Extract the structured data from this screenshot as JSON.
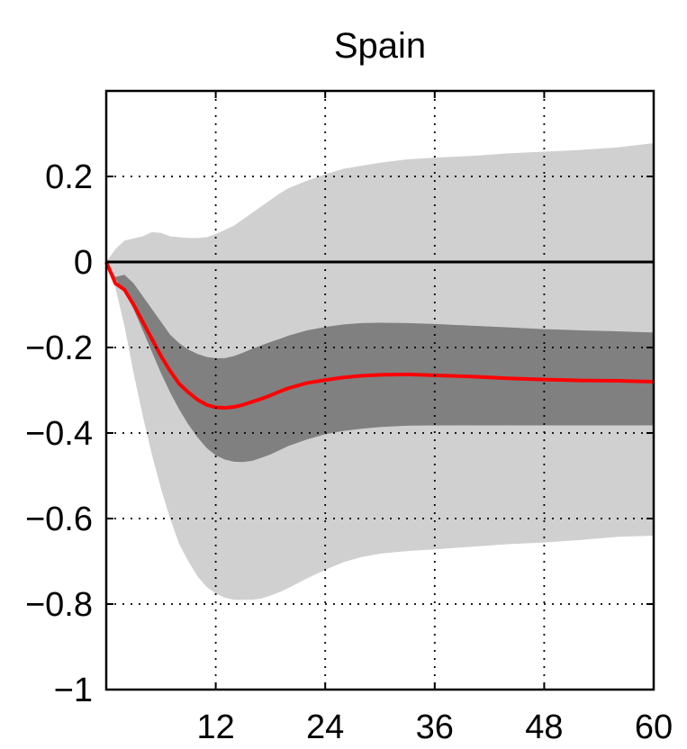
{
  "chart_data": {
    "type": "area",
    "title": "Spain",
    "xlabel": "",
    "ylabel": "",
    "xlim": [
      0,
      60
    ],
    "ylim": [
      -1,
      0.4
    ],
    "x_ticks": [
      12,
      24,
      36,
      48,
      60
    ],
    "x_tick_labels": [
      "12",
      "24",
      "36",
      "48",
      "60"
    ],
    "y_ticks": [
      0.2,
      0,
      -0.2,
      -0.4,
      -0.6,
      -0.8,
      -1
    ],
    "y_tick_labels": [
      "0.2",
      "0",
      "−0.2",
      "−0.4",
      "−0.6",
      "−0.8",
      "−1"
    ],
    "grid": true,
    "zero_line": true,
    "x": [
      0,
      1,
      2,
      3,
      4,
      5,
      6,
      7,
      8,
      9,
      10,
      11,
      12,
      13,
      14,
      15,
      16,
      17,
      18,
      19,
      20,
      22,
      24,
      26,
      28,
      30,
      33,
      36,
      40,
      44,
      48,
      52,
      56,
      60
    ],
    "series": [
      {
        "role": "median",
        "values": [
          0.0,
          -0.05,
          -0.065,
          -0.1,
          -0.14,
          -0.18,
          -0.22,
          -0.255,
          -0.285,
          -0.305,
          -0.322,
          -0.334,
          -0.34,
          -0.341,
          -0.339,
          -0.334,
          -0.327,
          -0.32,
          -0.312,
          -0.303,
          -0.295,
          -0.283,
          -0.276,
          -0.27,
          -0.266,
          -0.264,
          -0.263,
          -0.265,
          -0.268,
          -0.272,
          -0.275,
          -0.277,
          -0.278,
          -0.28
        ]
      },
      {
        "role": "inner-band",
        "lower": [
          0.0,
          -0.04,
          -0.07,
          -0.11,
          -0.16,
          -0.21,
          -0.26,
          -0.305,
          -0.345,
          -0.38,
          -0.41,
          -0.435,
          -0.452,
          -0.462,
          -0.467,
          -0.468,
          -0.465,
          -0.458,
          -0.45,
          -0.44,
          -0.43,
          -0.415,
          -0.403,
          -0.395,
          -0.39,
          -0.386,
          -0.383,
          -0.382,
          -0.382,
          -0.382,
          -0.382,
          -0.382,
          -0.382,
          -0.382
        ],
        "upper": [
          0.0,
          -0.035,
          -0.03,
          -0.05,
          -0.08,
          -0.11,
          -0.14,
          -0.17,
          -0.19,
          -0.205,
          -0.215,
          -0.222,
          -0.225,
          -0.225,
          -0.22,
          -0.212,
          -0.203,
          -0.195,
          -0.187,
          -0.18,
          -0.172,
          -0.16,
          -0.152,
          -0.146,
          -0.143,
          -0.142,
          -0.143,
          -0.145,
          -0.149,
          -0.153,
          -0.157,
          -0.16,
          -0.162,
          -0.165
        ]
      },
      {
        "role": "outer-band",
        "lower": [
          0.0,
          -0.06,
          -0.15,
          -0.26,
          -0.36,
          -0.45,
          -0.53,
          -0.6,
          -0.66,
          -0.7,
          -0.735,
          -0.76,
          -0.775,
          -0.785,
          -0.79,
          -0.79,
          -0.79,
          -0.787,
          -0.78,
          -0.772,
          -0.762,
          -0.74,
          -0.72,
          -0.702,
          -0.69,
          -0.682,
          -0.676,
          -0.672,
          -0.666,
          -0.66,
          -0.656,
          -0.65,
          -0.643,
          -0.64
        ],
        "upper": [
          0.0,
          0.03,
          0.05,
          0.055,
          0.06,
          0.07,
          0.068,
          0.06,
          0.058,
          0.056,
          0.056,
          0.058,
          0.065,
          0.075,
          0.085,
          0.1,
          0.115,
          0.13,
          0.145,
          0.16,
          0.173,
          0.19,
          0.205,
          0.218,
          0.225,
          0.232,
          0.24,
          0.244,
          0.248,
          0.254,
          0.258,
          0.262,
          0.268,
          0.278
        ]
      }
    ]
  },
  "colors": {
    "median": "#ff0000",
    "inner_band": "#808080",
    "outer_band": "#d0d0d0",
    "axis": "#000000",
    "grid": "#000000"
  }
}
